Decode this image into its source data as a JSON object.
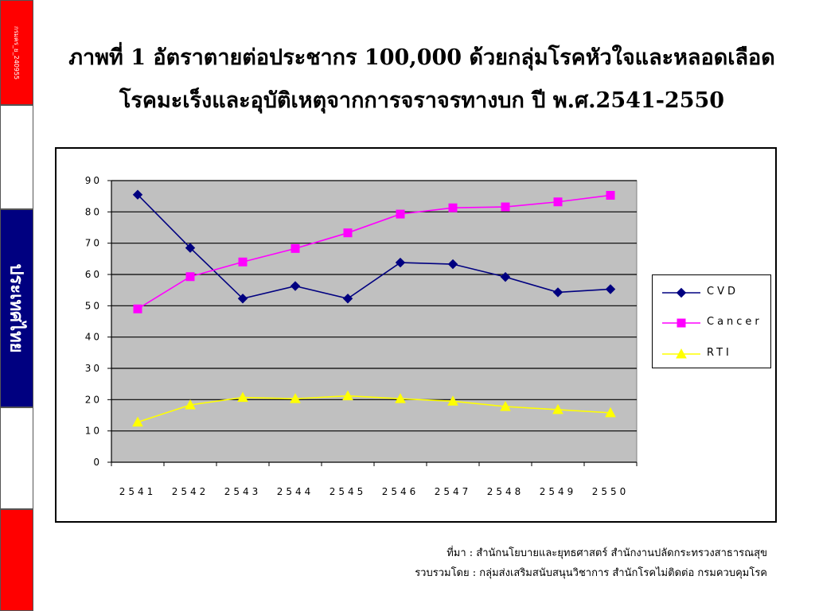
{
  "side_strip": {
    "code": "กรมคร_ย_240955",
    "country": "ประเทศไทย"
  },
  "title": {
    "line1": "ภาพที่ 1 อัตราตายต่อประชากร 100,000 ด้วยกลุ่มโรคหัวใจและหลอดเลือด",
    "line2": "โรคมะเร็งและอุบัติเหตุจากการจราจรทางบก ปี พ.ศ.2541-2550"
  },
  "chart_data": {
    "type": "line",
    "x": [
      "2541",
      "2542",
      "2543",
      "2544",
      "2545",
      "2546",
      "2547",
      "2548",
      "2549",
      "2550"
    ],
    "ylim": [
      0,
      90
    ],
    "yticks": [
      "0",
      "10",
      "20",
      "30",
      "40",
      "50",
      "60",
      "70",
      "80",
      "90"
    ],
    "grid": true,
    "legend_position": "right",
    "plot_background": "#c0c0c0",
    "series": [
      {
        "name": "CVD",
        "color": "#000080",
        "marker": "diamond",
        "values": [
          85.5,
          68.5,
          52.3,
          56.3,
          52.3,
          63.8,
          63.3,
          59.2,
          54.3,
          55.3
        ]
      },
      {
        "name": "Cancer",
        "color": "#ff00ff",
        "marker": "square",
        "values": [
          49.0,
          59.3,
          64.0,
          68.3,
          73.3,
          79.3,
          81.3,
          81.6,
          83.2,
          85.3
        ]
      },
      {
        "name": "RTI",
        "color": "#ffff00",
        "marker": "triangle",
        "values": [
          12.8,
          18.3,
          20.7,
          20.3,
          21.2,
          20.3,
          19.5,
          17.8,
          16.8,
          15.8
        ]
      }
    ]
  },
  "legend_labels": [
    "CVD",
    "Cancer",
    "RTI"
  ],
  "source": {
    "line1": "ที่มา : สำนักนโยบายและยุทธศาสตร์ สำนักงานปลัดกระทรวงสาธารณสุข",
    "line2": "รวบรวมโดย : กลุ่มส่งเสริมสนับสนุนวิชาการ  สำนักโรคไม่ติดต่อ  กรมควบคุมโรค"
  }
}
